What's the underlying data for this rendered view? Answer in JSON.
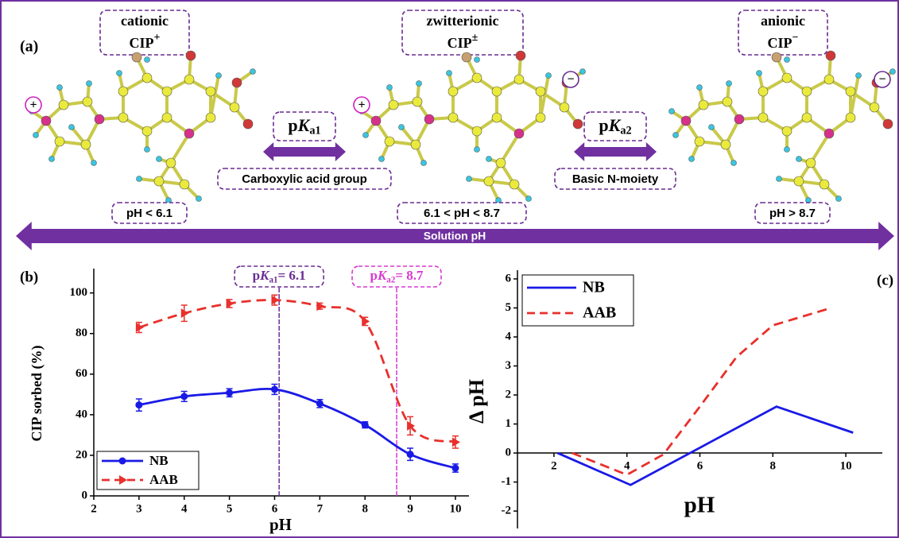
{
  "panel_a": {
    "label": "(a)",
    "species": [
      {
        "name": "cationic",
        "formula": "CIP",
        "charge": "+",
        "range": "pH < 6.1",
        "markers": [
          "+"
        ]
      },
      {
        "name": "zwitterionic",
        "formula": "CIP",
        "charge": "±",
        "range": "6.1 < pH < 8.7",
        "markers": [
          "+",
          "−"
        ]
      },
      {
        "name": "anionic",
        "formula": "CIP",
        "charge": "−",
        "range": "pH > 8.7",
        "markers": [
          "−"
        ]
      }
    ],
    "transitions": [
      {
        "prefix": "p",
        "symbol": "K",
        "subscript": "a1",
        "note": "Carboxylic acid group"
      },
      {
        "prefix": "p",
        "symbol": "K",
        "subscript": "a2",
        "note": "Basic N-moiety"
      }
    ],
    "axis_label": "Solution pH"
  },
  "chart_data": [
    {
      "type": "line",
      "title": "(b)",
      "x_label": "pH",
      "y_label": "CIP sorbed (%)",
      "x": [
        3,
        4,
        5,
        6,
        7,
        8,
        9,
        10
      ],
      "xlim": [
        2,
        10.3
      ],
      "xticks": [
        2,
        3,
        4,
        5,
        6,
        7,
        8,
        9,
        10
      ],
      "ylim": [
        0,
        112
      ],
      "yticks": [
        0,
        20,
        40,
        60,
        80,
        100
      ],
      "legend": "lower-left",
      "smooth": true,
      "series": [
        {
          "name": "NB",
          "color": "#1a1ae6",
          "marker": "circle",
          "dash": false,
          "values": [
            44.8,
            49,
            50.8,
            52.5,
            45.5,
            35,
            20.5,
            13.7
          ],
          "errors": [
            3,
            2.5,
            2,
            2.5,
            2,
            1.5,
            3,
            2
          ]
        },
        {
          "name": "AAB",
          "color": "#e8302c",
          "marker": "triangle",
          "dash": true,
          "values": [
            83,
            90,
            94.8,
            96.5,
            93.5,
            86,
            34.5,
            26.5
          ],
          "errors": [
            2.5,
            4,
            2,
            2.5,
            1.5,
            2,
            4.5,
            3
          ]
        }
      ],
      "annotations": [
        {
          "prefix": "p",
          "symbol": "K",
          "subscript": "a1",
          "suffix": "= 6.1",
          "x": 6.1,
          "color": "#6a2c91"
        },
        {
          "prefix": "p",
          "symbol": "K",
          "subscript": "a2",
          "suffix": "= 8.7",
          "x": 8.7,
          "color": "#d63ad0"
        }
      ]
    },
    {
      "type": "line",
      "title": "(c)",
      "x_label": "pH",
      "y_label": "Δ pH",
      "xlim": [
        1,
        11
      ],
      "xticks": [
        2,
        4,
        6,
        8,
        10
      ],
      "ylim": [
        -2.6,
        6.3
      ],
      "yticks": [
        -2,
        -1,
        0,
        1,
        2,
        3,
        4,
        5,
        6
      ],
      "x_axis_at_zero": true,
      "legend": "upper-left",
      "smooth": false,
      "series": [
        {
          "name": "NB",
          "color": "#1a1ae6",
          "dash": false,
          "x": [
            2.1,
            4.1,
            8.1,
            10.2
          ],
          "values": [
            0,
            -1.1,
            1.6,
            0.7
          ]
        },
        {
          "name": "AAB",
          "color": "#e8302c",
          "dash": true,
          "x": [
            2.5,
            4.0,
            5.0,
            6.0,
            7.0,
            8.0,
            9.6
          ],
          "values": [
            0,
            -0.75,
            -0.05,
            1.6,
            3.3,
            4.4,
            5.0
          ]
        }
      ]
    }
  ]
}
